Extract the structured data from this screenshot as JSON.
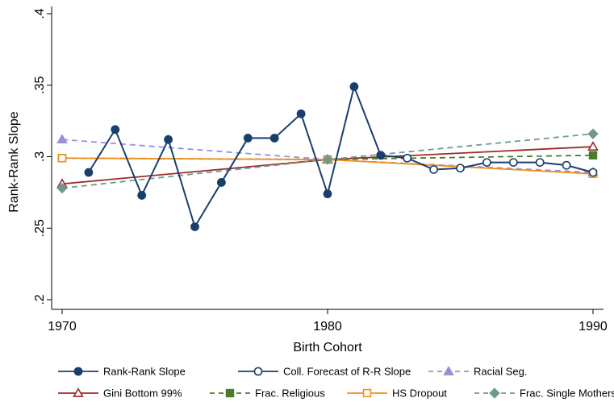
{
  "chart_data": {
    "type": "line",
    "xlabel": "Birth Cohort",
    "ylabel": "Rank-Rank Slope",
    "xlim": [
      1970,
      1990
    ],
    "ylim": [
      0.2,
      0.4
    ],
    "x_ticks": [
      1970,
      1980,
      1990
    ],
    "x_tick_labels": [
      "1970",
      "1980",
      "1990"
    ],
    "y_ticks": [
      0.2,
      0.25,
      0.3,
      0.35,
      0.4
    ],
    "y_tick_labels": [
      ".2",
      ".25",
      ".3",
      ".35",
      ".4"
    ],
    "grid": false,
    "legend_position": "bottom",
    "series": [
      {
        "name": "Rank-Rank Slope",
        "style": "solid",
        "marker": "filled-circle",
        "color": "#1a3f6b",
        "x": [
          1971,
          1972,
          1973,
          1974,
          1975,
          1976,
          1977,
          1978,
          1979,
          1980,
          1981,
          1982
        ],
        "values": [
          0.289,
          0.319,
          0.273,
          0.312,
          0.251,
          0.282,
          0.313,
          0.313,
          0.33,
          0.274,
          0.349,
          0.301
        ]
      },
      {
        "name": "Coll. Forecast of R-R Slope",
        "style": "solid",
        "marker": "hollow-circle",
        "color": "#1a3f6b",
        "x": [
          1982,
          1983,
          1984,
          1985,
          1986,
          1987,
          1988,
          1989,
          1990
        ],
        "values": [
          0.301,
          0.299,
          0.291,
          0.292,
          0.296,
          0.296,
          0.296,
          0.294,
          0.289
        ]
      },
      {
        "name": "Racial Seg.",
        "style": "dash",
        "marker": "filled-triangle",
        "color": "#9b8fd6",
        "x": [
          1970,
          1980,
          1990
        ],
        "values": [
          0.312,
          0.298,
          0.289
        ]
      },
      {
        "name": "Gini Bottom 99%",
        "style": "solid",
        "marker": "hollow-triangle",
        "color": "#9e2a2b",
        "x": [
          1970,
          1980,
          1990
        ],
        "values": [
          0.281,
          0.298,
          0.307
        ]
      },
      {
        "name": "Frac. Religious",
        "style": "dash",
        "marker": "filled-square",
        "color": "#4a7c2c",
        "x": [
          1970,
          1980,
          1990
        ],
        "values": [
          0.299,
          0.298,
          0.301
        ]
      },
      {
        "name": "HS Dropout",
        "style": "solid",
        "marker": "hollow-square",
        "color": "#f28e1c",
        "x": [
          1970,
          1980,
          1990
        ],
        "values": [
          0.299,
          0.298,
          0.288
        ]
      },
      {
        "name": "Frac. Single Mothers",
        "style": "dash",
        "marker": "filled-diamond",
        "color": "#6f9a8d",
        "x": [
          1970,
          1980,
          1990
        ],
        "values": [
          0.278,
          0.298,
          0.316
        ]
      }
    ]
  }
}
